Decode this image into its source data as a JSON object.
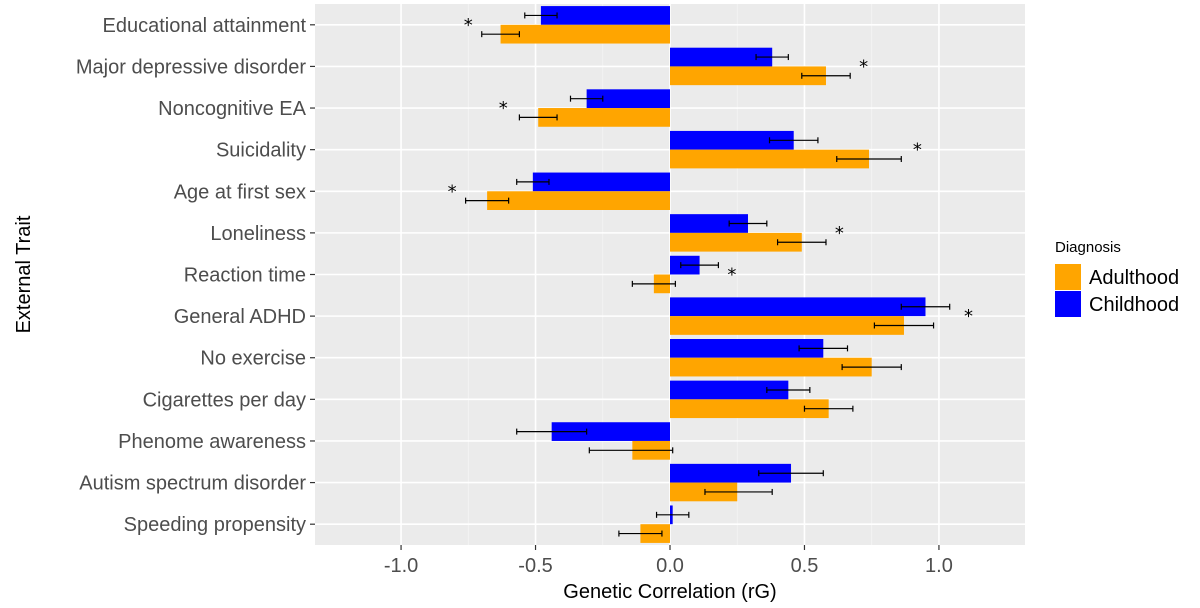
{
  "chart_data": {
    "type": "bar",
    "orientation": "horizontal",
    "xlabel": "Genetic Correlation (rG)",
    "ylabel": "External Trait",
    "xlim": [
      -1.32,
      1.32
    ],
    "xticks": [
      -1.0,
      -0.5,
      0.0,
      0.5,
      1.0
    ],
    "xtick_labels": [
      "-1.0",
      "-0.5",
      "0.0",
      "0.5",
      "1.0"
    ],
    "grid": true,
    "legend": {
      "title": "Diagnosis",
      "position": "right"
    },
    "categories": [
      "Educational attainment",
      "Major depressive disorder",
      "Noncognitive EA",
      "Suicidality",
      "Age at first sex",
      "Loneliness",
      "Reaction time",
      "General ADHD",
      "No exercise",
      "Cigarettes per day",
      "Phenome awareness",
      "Autism spectrum disorder",
      "Speeding propensity"
    ],
    "series": [
      {
        "name": "Childhood",
        "color": "#0000FF",
        "values": [
          -0.48,
          0.38,
          -0.31,
          0.46,
          -0.51,
          0.29,
          0.11,
          0.95,
          0.57,
          0.44,
          -0.44,
          0.45,
          0.01
        ],
        "ci_low": [
          -0.54,
          0.32,
          -0.37,
          0.37,
          -0.57,
          0.22,
          0.04,
          0.86,
          0.48,
          0.36,
          -0.57,
          0.33,
          -0.05
        ],
        "ci_high": [
          -0.42,
          0.44,
          -0.25,
          0.55,
          -0.45,
          0.36,
          0.18,
          1.04,
          0.66,
          0.52,
          -0.31,
          0.57,
          0.07
        ]
      },
      {
        "name": "Adulthood",
        "color": "#FFA500",
        "values": [
          -0.63,
          0.58,
          -0.49,
          0.74,
          -0.68,
          0.49,
          -0.06,
          0.87,
          0.75,
          0.59,
          -0.14,
          0.25,
          -0.11
        ],
        "ci_low": [
          -0.7,
          0.49,
          -0.56,
          0.62,
          -0.76,
          0.4,
          -0.14,
          0.76,
          0.64,
          0.5,
          -0.3,
          0.13,
          -0.19
        ],
        "ci_high": [
          -0.56,
          0.67,
          -0.42,
          0.86,
          -0.6,
          0.58,
          0.02,
          0.98,
          0.86,
          0.68,
          0.01,
          0.38,
          -0.03
        ]
      }
    ],
    "significance": {
      "marker": "*",
      "values": [
        -0.75,
        0.72,
        -0.62,
        0.92,
        -0.81,
        0.63,
        0.23,
        1.11,
        null,
        null,
        null,
        null,
        null
      ]
    }
  }
}
